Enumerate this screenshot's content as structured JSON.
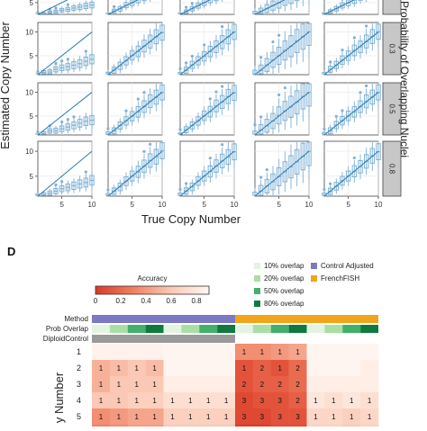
{
  "chart_data": [
    {
      "type": "scatter",
      "xlabel": "True Copy Number",
      "ylabel": "Estimated Copy Number",
      "facet_label": "Probability of Overlapping Nuclei",
      "row_strips": [
        "0.3",
        "0.5",
        "0.8"
      ],
      "x_ticks": [
        "5",
        "10"
      ],
      "y_ticks": [
        "5",
        "10"
      ],
      "xlim": [
        1,
        10
      ],
      "ylim": [
        1,
        12
      ],
      "panel_rows": 4,
      "panel_cols": 5,
      "colors": {
        "box": "#7fb1d6",
        "line": "#2b7bab",
        "strip": "#c7c7c7"
      }
    },
    {
      "type": "heatmap",
      "panel_label": "D",
      "colorbar": {
        "title": "Accuracy",
        "ticks": [
          "0",
          "0.2",
          "0.4",
          "0.6",
          "0.8"
        ],
        "range": [
          0,
          0.9
        ]
      },
      "legend": [
        {
          "label": "10% overlap",
          "color": "#e3f4e1"
        },
        {
          "label": "20% overlap",
          "color": "#a9dfa5"
        },
        {
          "label": "50% overlap",
          "color": "#41b06a"
        },
        {
          "label": "80% overlap",
          "color": "#0f7a3e"
        },
        {
          "label": "Control Adjusted",
          "color": "#7b78c4"
        },
        {
          "label": "FrenchFISH",
          "color": "#f1a51a"
        }
      ],
      "annotation_rows": [
        "Method",
        "Prob Overlap",
        "DiploidControl"
      ],
      "method_groups": [
        {
          "label": "Control Adjusted",
          "span": 4
        },
        {
          "label": "Control Adjusted",
          "span": 4
        },
        {
          "label": "FrenchFISH",
          "span": 4
        },
        {
          "label": "FrenchFISH",
          "span": 4
        }
      ],
      "prob_overlap": [
        "10% overlap",
        "20% overlap",
        "50% overlap",
        "80% overlap",
        "10% overlap",
        "20% overlap",
        "50% overlap",
        "80% overlap",
        "10% overlap",
        "20% overlap",
        "50% overlap",
        "80% overlap",
        "10% overlap",
        "20% overlap",
        "50% overlap",
        "80% overlap"
      ],
      "ylabel": "y Number",
      "row_labels": [
        "1",
        "2",
        "3",
        "4",
        "5"
      ],
      "cells": [
        [
          "",
          "",
          "",
          "",
          "",
          "",
          "",
          "",
          "1",
          "1",
          "1",
          "1",
          "",
          "",
          "",
          ""
        ],
        [
          "1",
          "1",
          "1",
          "1",
          "",
          "",
          "",
          "",
          "1",
          "2",
          "1",
          "2",
          "",
          "",
          "",
          ""
        ],
        [
          "1",
          "1",
          "1",
          "1",
          "",
          "",
          "",
          "",
          "2",
          "2",
          "2",
          "2",
          "",
          "",
          "",
          ""
        ],
        [
          "1",
          "1",
          "1",
          "1",
          "1",
          "1",
          "1",
          "1",
          "3",
          "3",
          "3",
          "2",
          "1",
          "1",
          "1",
          "1"
        ],
        [
          "1",
          "1",
          "1",
          "1",
          "1",
          "1",
          "1",
          "1",
          "3",
          "3",
          "3",
          "3",
          "1",
          "1",
          "1",
          "1"
        ]
      ],
      "accuracy": [
        [
          0.88,
          0.88,
          0.88,
          0.88,
          0.9,
          0.9,
          0.9,
          0.9,
          0.35,
          0.35,
          0.4,
          0.45,
          0.9,
          0.9,
          0.9,
          0.9
        ],
        [
          0.5,
          0.55,
          0.6,
          0.55,
          0.9,
          0.9,
          0.9,
          0.9,
          0.1,
          0.15,
          0.1,
          0.2,
          0.9,
          0.9,
          0.9,
          0.85
        ],
        [
          0.5,
          0.6,
          0.6,
          0.6,
          0.85,
          0.85,
          0.85,
          0.85,
          0.1,
          0.15,
          0.15,
          0.2,
          0.85,
          0.85,
          0.85,
          0.85
        ],
        [
          0.6,
          0.6,
          0.65,
          0.65,
          0.75,
          0.75,
          0.75,
          0.75,
          0.05,
          0.1,
          0.1,
          0.15,
          0.8,
          0.75,
          0.8,
          0.75
        ],
        [
          0.35,
          0.4,
          0.45,
          0.45,
          0.65,
          0.65,
          0.65,
          0.65,
          0.05,
          0.05,
          0.1,
          0.1,
          0.7,
          0.7,
          0.65,
          0.7
        ]
      ]
    }
  ]
}
